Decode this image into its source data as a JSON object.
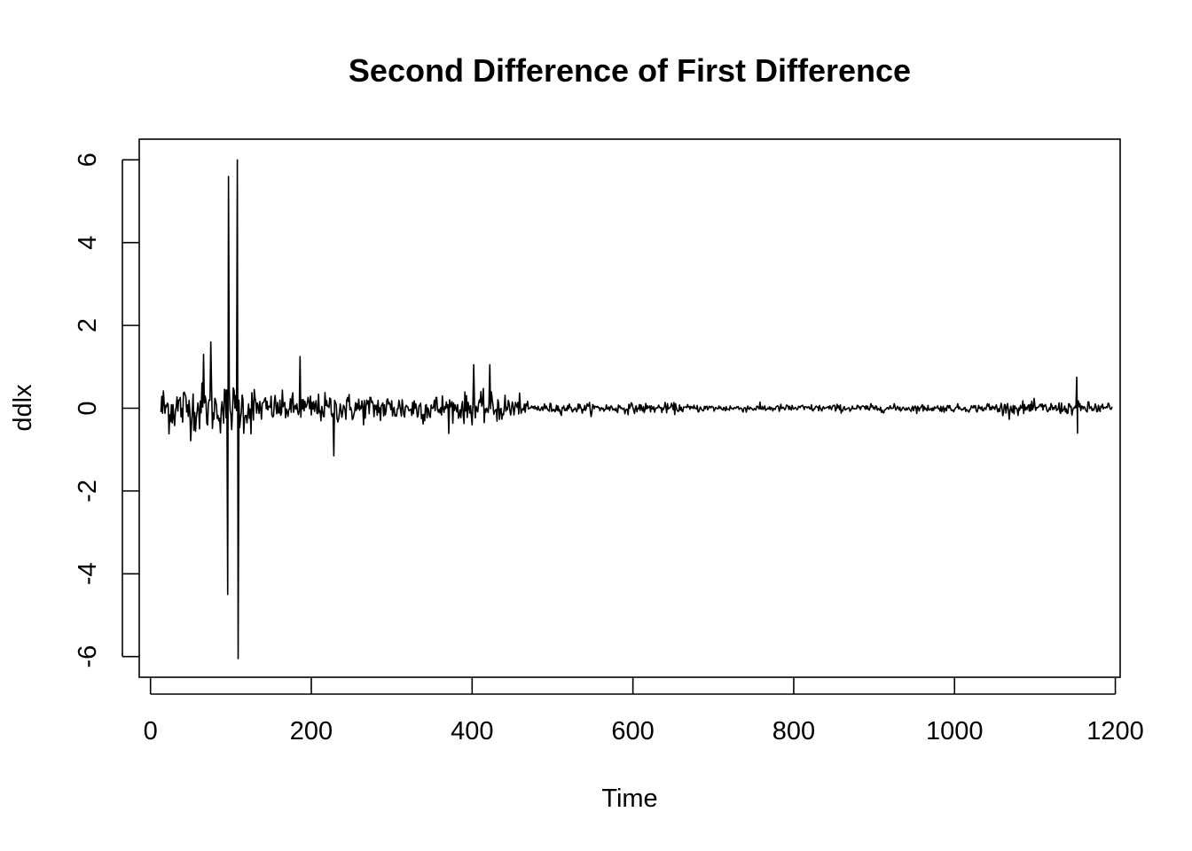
{
  "chart_data": {
    "type": "line",
    "title": "Second Difference of First Difference",
    "xlabel": "Time",
    "ylabel": "ddlx",
    "xlim": [
      -14,
      1206
    ],
    "ylim": [
      -6.5,
      6.5
    ],
    "x_ticks": [
      0,
      200,
      400,
      600,
      800,
      1000,
      1200
    ],
    "y_ticks": [
      -6,
      -4,
      -2,
      0,
      2,
      4,
      6
    ],
    "x_tick_labels": [
      "0",
      "200",
      "400",
      "600",
      "800",
      "1000",
      "1200"
    ],
    "y_tick_labels": [
      "-6",
      "-4",
      "-2",
      "0",
      "2",
      "4",
      "6"
    ],
    "grid": false,
    "legend": "none",
    "line_color": "#000000",
    "series": [
      {
        "x_start": 13,
        "x_end": 1196,
        "x_step": 1,
        "notable_points": [
          {
            "x": 96,
            "y": -4.5
          },
          {
            "x": 97,
            "y": 5.6
          },
          {
            "x": 108,
            "y": 6.0
          },
          {
            "x": 109,
            "y": -6.05
          },
          {
            "x": 75,
            "y": 1.6
          },
          {
            "x": 66,
            "y": 1.3
          },
          {
            "x": 186,
            "y": 1.25
          },
          {
            "x": 228,
            "y": -1.15
          },
          {
            "x": 402,
            "y": 1.05
          },
          {
            "x": 422,
            "y": 1.05
          },
          {
            "x": 1152,
            "y": 0.75
          },
          {
            "x": 1152,
            "y": -0.6
          }
        ],
        "segments": [
          {
            "x_from": 13,
            "x_to": 130,
            "amplitude": 0.6
          },
          {
            "x_from": 130,
            "x_to": 460,
            "amplitude": 0.35
          },
          {
            "x_from": 460,
            "x_to": 660,
            "amplitude": 0.12
          },
          {
            "x_from": 660,
            "x_to": 1040,
            "amplitude": 0.09
          },
          {
            "x_from": 1040,
            "x_to": 1196,
            "amplitude": 0.15
          }
        ]
      }
    ]
  }
}
